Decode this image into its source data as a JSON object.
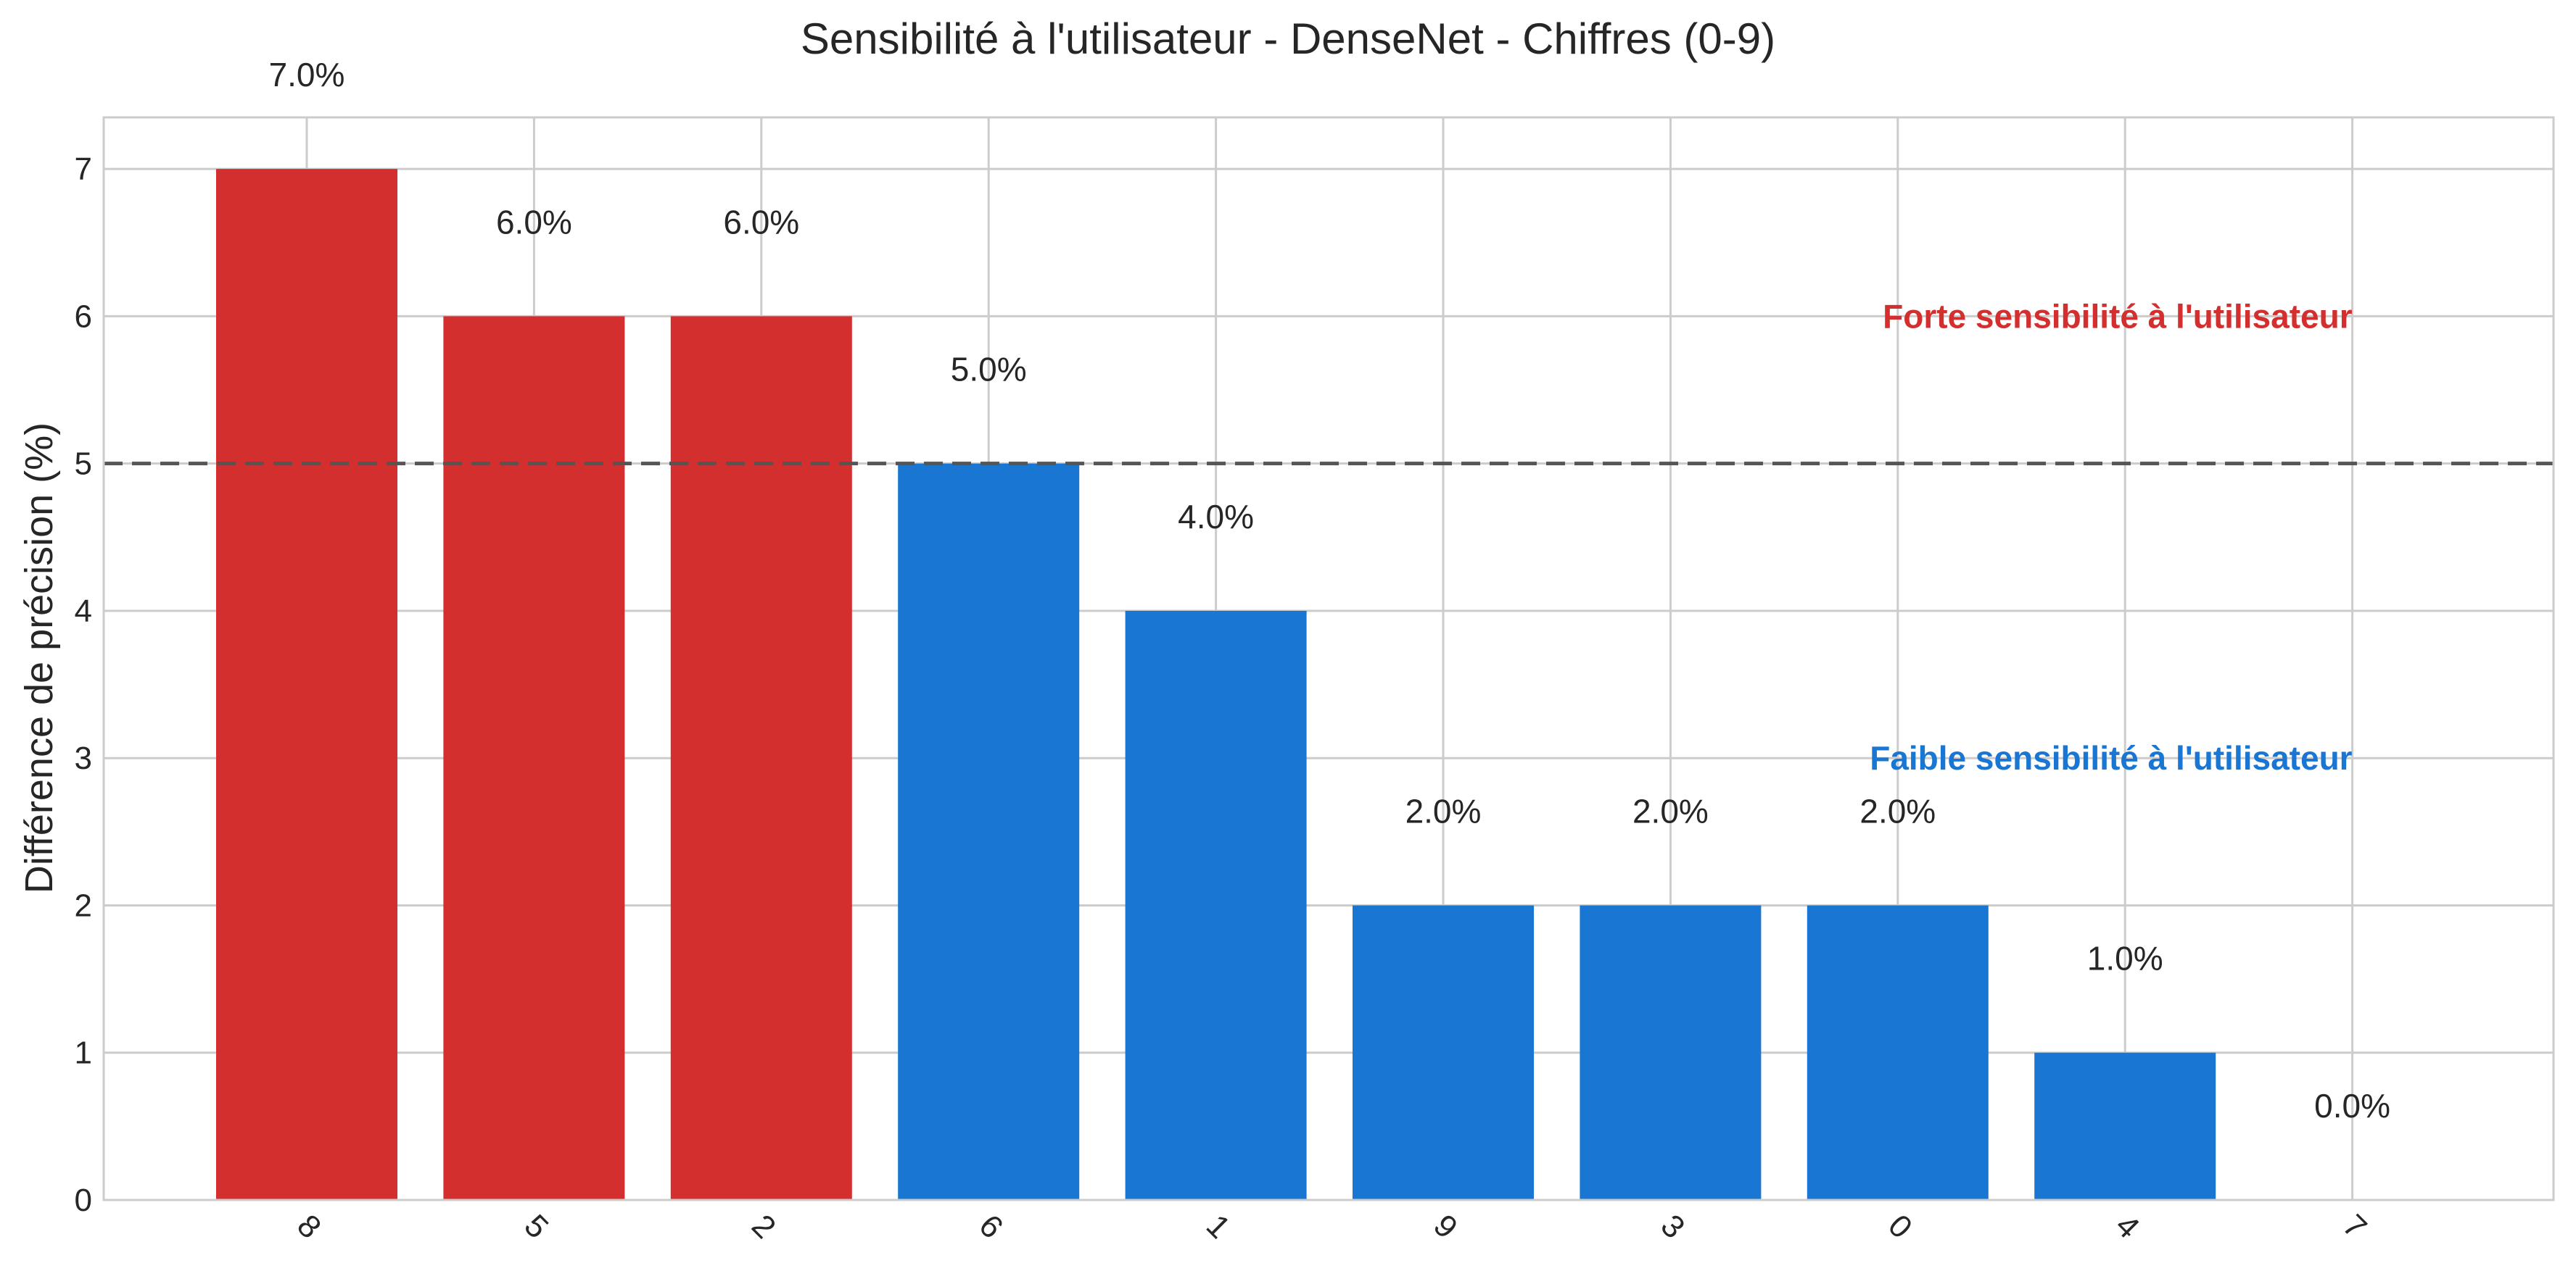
{
  "chart_data": {
    "type": "bar",
    "title": "Sensibilité à l'utilisateur - DenseNet - Chiffres (0-9)",
    "xlabel": "",
    "ylabel": "Différence de précision (%)",
    "categories": [
      "8",
      "5",
      "2",
      "6",
      "1",
      "9",
      "3",
      "0",
      "4",
      "7"
    ],
    "values": [
      7.0,
      6.0,
      6.0,
      5.0,
      4.0,
      2.0,
      2.0,
      2.0,
      1.0,
      0.0
    ],
    "data_labels": [
      "7.0%",
      "6.0%",
      "6.0%",
      "5.0%",
      "4.0%",
      "2.0%",
      "2.0%",
      "2.0%",
      "1.0%",
      "0.0%"
    ],
    "ylim": [
      0,
      7.35
    ],
    "yticks": [
      0,
      1,
      2,
      3,
      4,
      5,
      6,
      7
    ],
    "grid": true,
    "threshold": 5,
    "threshold_style": "dashed",
    "colors": {
      "high": "#d32f2f",
      "low": "#1976d2",
      "threshold_line": "#555555",
      "grid": "#cccccc",
      "frame": "#cccccc"
    },
    "bar_colors": [
      "high",
      "high",
      "high",
      "low",
      "low",
      "low",
      "low",
      "low",
      "low",
      "low"
    ],
    "annotations": [
      {
        "text": "Forte sensibilité à l'utilisateur",
        "color_key": "high",
        "x_category": "7",
        "y": 6.0
      },
      {
        "text": "Faible sensibilité à l'utilisateur",
        "color_key": "low",
        "x_category": "7",
        "y": 3.0
      }
    ]
  }
}
